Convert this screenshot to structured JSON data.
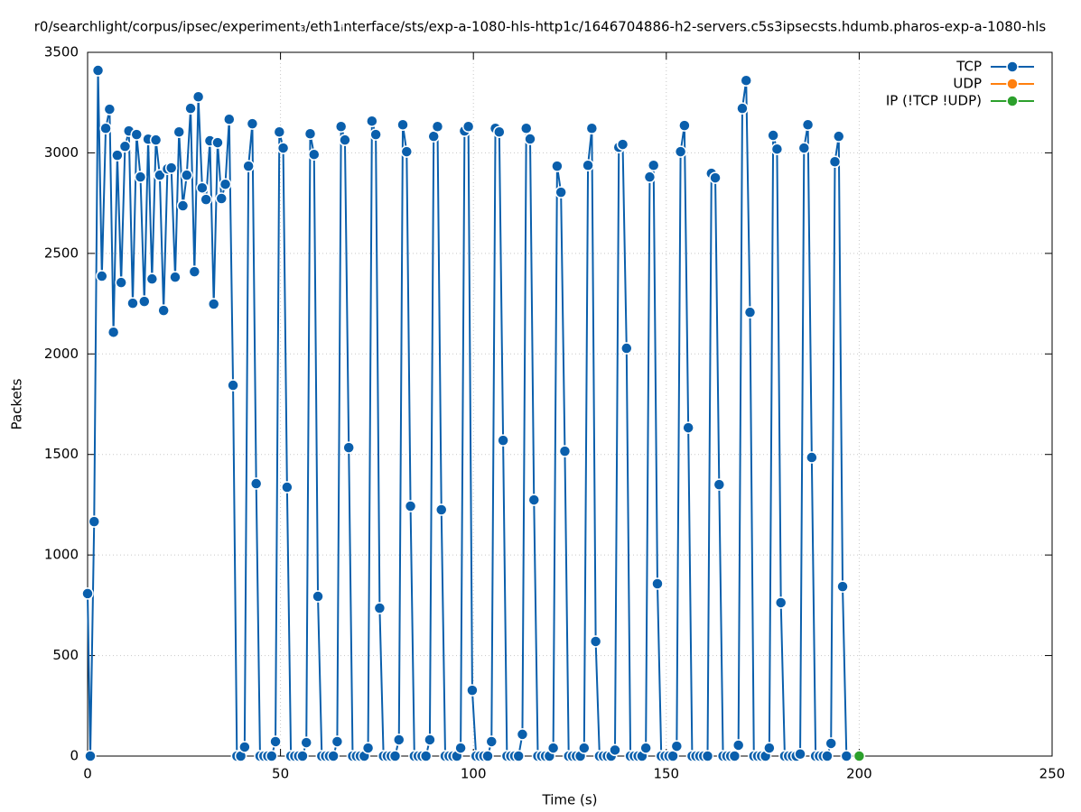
{
  "chart_data": {
    "type": "line",
    "title": "r0/searchlight/corpus/ipsec/experiment₃/eth1ᵢnterface/sts/exp-a-1080-hls-http1c/1646704886-h2-servers.c5s3ipsecsts.hdumb.pharos-exp-a-1080-hls",
    "xlabel": "Time (s)",
    "ylabel": "Packets",
    "xlim": [
      0,
      250
    ],
    "ylim": [
      0,
      3500
    ],
    "xticks": [
      0,
      50,
      100,
      150,
      200,
      250
    ],
    "yticks": [
      0,
      500,
      1000,
      1500,
      2000,
      2500,
      3000,
      3500
    ],
    "grid": true,
    "legend": "top right",
    "series": [
      {
        "name": "TCP",
        "color": "#0a5fac",
        "x": [
          0,
          0.7,
          1.7,
          2.7,
          3.7,
          4.7,
          5.7,
          6.7,
          7.7,
          8.7,
          9.7,
          10.7,
          11.7,
          12.7,
          13.7,
          14.7,
          15.7,
          16.7,
          17.7,
          18.7,
          19.7,
          20.7,
          21.7,
          22.7,
          23.7,
          24.7,
          25.7,
          26.7,
          27.7,
          28.7,
          29.7,
          30.7,
          31.7,
          32.7,
          33.7,
          34.7,
          35.7,
          36.7,
          37.7,
          38.7,
          39.7,
          40.7,
          41.7,
          42.7,
          43.7,
          44.7,
          45.7,
          46.7,
          47.7,
          48.7,
          49.7,
          50.7,
          51.7,
          52.7,
          53.7,
          54.7,
          55.7,
          56.7,
          57.7,
          58.7,
          59.7,
          60.7,
          61.7,
          62.7,
          63.7,
          64.7,
          65.7,
          66.7,
          67.7,
          68.7,
          69.7,
          70.7,
          71.7,
          72.7,
          73.7,
          74.7,
          75.7,
          76.7,
          77.7,
          78.7,
          79.7,
          80.7,
          81.7,
          82.7,
          83.7,
          84.7,
          85.7,
          86.7,
          87.7,
          88.7,
          89.7,
          90.7,
          91.7,
          92.7,
          93.7,
          94.7,
          95.7,
          96.7,
          97.7,
          98.7,
          99.7,
          100.7,
          101.7,
          102.7,
          103.7,
          104.7,
          105.7,
          106.7,
          107.7,
          108.7,
          109.7,
          110.7,
          111.7,
          112.7,
          113.7,
          114.7,
          115.7,
          116.7,
          117.7,
          118.7,
          119.7,
          120.7,
          121.7,
          122.7,
          123.7,
          124.7,
          125.7,
          126.7,
          127.7,
          128.7,
          129.7,
          130.7,
          131.7,
          132.7,
          133.7,
          134.7,
          135.7,
          136.7,
          137.7,
          138.7,
          139.7,
          140.7,
          141.7,
          142.7,
          143.7,
          144.7,
          145.7,
          146.7,
          147.7,
          148.7,
          149.7,
          150.7,
          151.7,
          152.7,
          153.7,
          154.7,
          155.7,
          156.7,
          157.7,
          158.7,
          159.7,
          160.7,
          161.7,
          162.7,
          163.7,
          164.7,
          165.7,
          166.7,
          167.7,
          168.7,
          169.7,
          170.7,
          171.7,
          172.7,
          173.7,
          174.7,
          175.7,
          176.7,
          177.7,
          178.7,
          179.7,
          180.7,
          181.7,
          182.7,
          183.7,
          184.7,
          185.7,
          186.7,
          187.7,
          188.7,
          189.7,
          190.7,
          191.7,
          192.7,
          193.7,
          194.7,
          195.7,
          196.7
        ],
        "values": [
          808,
          0,
          1166,
          3410,
          2387,
          3122,
          3217,
          2108,
          2988,
          2355,
          3032,
          3109,
          2252,
          3091,
          2880,
          2261,
          3068,
          2373,
          3064,
          2889,
          2216,
          2920,
          2925,
          2382,
          3104,
          2737,
          2889,
          3221,
          2409,
          3279,
          2826,
          2768,
          3060,
          2248,
          3051,
          2773,
          2844,
          3167,
          1844,
          0,
          0,
          45,
          2934,
          3145,
          1355,
          0,
          0,
          0,
          0,
          72,
          3104,
          3024,
          1337,
          0,
          0,
          0,
          0,
          67,
          3095,
          2992,
          794,
          0,
          0,
          0,
          0,
          72,
          3131,
          3064,
          1534,
          0,
          0,
          0,
          0,
          40,
          3158,
          3091,
          736,
          0,
          0,
          0,
          0,
          81,
          3140,
          3006,
          1243,
          0,
          0,
          0,
          0,
          81,
          3082,
          3131,
          1225,
          0,
          0,
          0,
          0,
          40,
          3109,
          3131,
          327,
          0,
          0,
          0,
          0,
          72,
          3122,
          3104,
          1570,
          0,
          0,
          0,
          0,
          108,
          3122,
          3069,
          1274,
          0,
          0,
          0,
          0,
          40,
          2934,
          2804,
          1516,
          0,
          0,
          0,
          0,
          40,
          2938,
          3122,
          570,
          0,
          0,
          0,
          0,
          30,
          3028,
          3042,
          2028,
          0,
          0,
          0,
          0,
          40,
          2880,
          2938,
          857,
          0,
          0,
          0,
          0,
          49,
          3006,
          3136,
          1633,
          0,
          0,
          0,
          0,
          0,
          2898,
          2876,
          1350,
          0,
          0,
          0,
          0,
          54,
          3221,
          3360,
          2207,
          0,
          0,
          0,
          0,
          40,
          3087,
          3019,
          763,
          0,
          0,
          0,
          0,
          10,
          3024,
          3140,
          1485,
          0,
          0,
          0,
          0,
          63,
          2956,
          3082,
          843,
          0
        ]
      },
      {
        "name": "UDP",
        "color": "#ff7f0e",
        "x": [],
        "values": []
      },
      {
        "name": "IP (!TCP  !UDP)",
        "color": "#2ca02c",
        "x": [
          200
        ],
        "values": [
          0
        ]
      }
    ]
  }
}
